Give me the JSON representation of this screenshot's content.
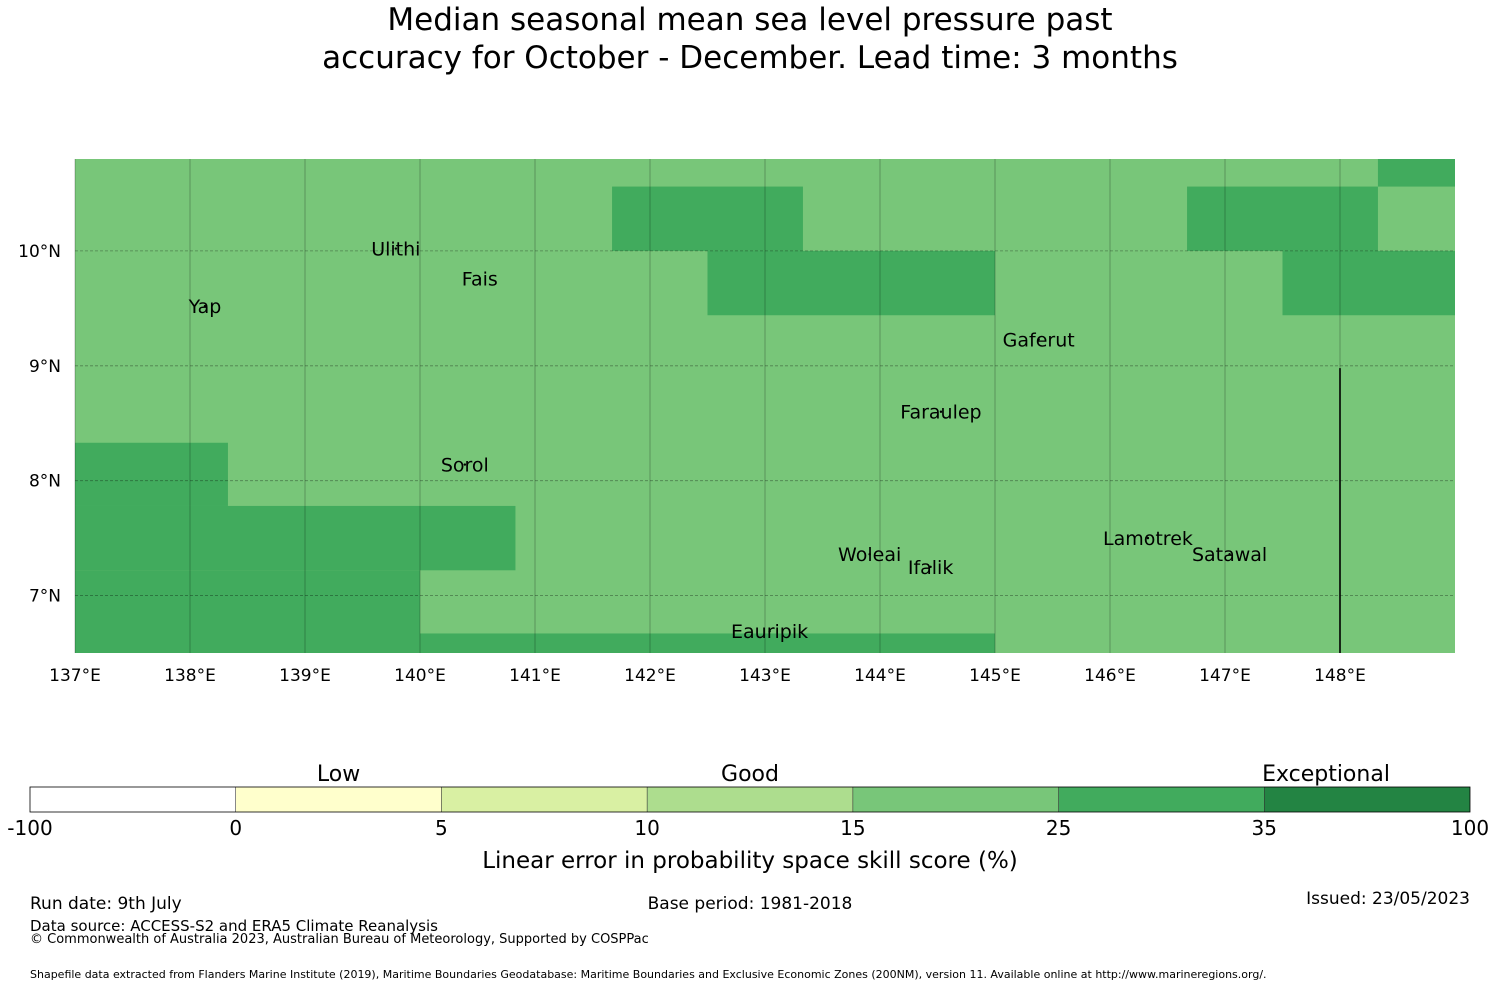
{
  "title": {
    "line1": "Median seasonal mean sea level pressure past",
    "line2": "accuracy for October - December. Lead time: 3 months"
  },
  "map": {
    "lon_range": [
      137.0,
      149.0
    ],
    "lat_range": [
      6.5,
      10.8
    ],
    "grid": true,
    "lon_ticks": [
      {
        "value": 137,
        "label": "137°E"
      },
      {
        "value": 138,
        "label": "138°E"
      },
      {
        "value": 139,
        "label": "139°E"
      },
      {
        "value": 140,
        "label": "140°E"
      },
      {
        "value": 141,
        "label": "141°E"
      },
      {
        "value": 142,
        "label": "142°E"
      },
      {
        "value": 143,
        "label": "143°E"
      },
      {
        "value": 144,
        "label": "144°E"
      },
      {
        "value": 145,
        "label": "145°E"
      },
      {
        "value": 146,
        "label": "146°E"
      },
      {
        "value": 147,
        "label": "147°E"
      },
      {
        "value": 148,
        "label": "148°E"
      }
    ],
    "lat_ticks": [
      {
        "value": 7,
        "label": "7°N"
      },
      {
        "value": 8,
        "label": "8°N"
      },
      {
        "value": 9,
        "label": "9°N"
      },
      {
        "value": 10,
        "label": "10°N"
      }
    ],
    "background_category": "15-25",
    "cells": [
      {
        "lon": [
          141.67,
          143.33
        ],
        "lat": [
          10.0,
          10.56
        ],
        "category": "25-35"
      },
      {
        "lon": [
          142.5,
          145.0
        ],
        "lat": [
          9.44,
          10.0
        ],
        "category": "25-35"
      },
      {
        "lon": [
          146.67,
          148.33
        ],
        "lat": [
          10.0,
          10.56
        ],
        "category": "25-35"
      },
      {
        "lon": [
          148.33,
          149.0
        ],
        "lat": [
          10.56,
          10.8
        ],
        "category": "25-35"
      },
      {
        "lon": [
          147.5,
          149.0
        ],
        "lat": [
          9.44,
          10.0
        ],
        "category": "25-35"
      },
      {
        "lon": [
          137.0,
          138.33
        ],
        "lat": [
          7.78,
          8.33
        ],
        "category": "25-35"
      },
      {
        "lon": [
          137.0,
          140.83
        ],
        "lat": [
          7.22,
          7.78
        ],
        "category": "25-35"
      },
      {
        "lon": [
          137.0,
          140.0
        ],
        "lat": [
          6.5,
          7.22
        ],
        "category": "25-35"
      },
      {
        "lon": [
          140.0,
          145.0
        ],
        "lat": [
          6.5,
          6.67
        ],
        "category": "25-35"
      }
    ],
    "boundary_line": {
      "lon": 148.0,
      "lat": [
        6.5,
        8.98
      ]
    },
    "places": [
      {
        "name": "Ulithi",
        "lon": 139.79,
        "lat": 10.02
      },
      {
        "name": "Fais",
        "lon": 140.52,
        "lat": 9.76
      },
      {
        "name": "Yap",
        "lon": 138.13,
        "lat": 9.52
      },
      {
        "name": "Gaferut",
        "lon": 145.38,
        "lat": 9.23
      },
      {
        "name": "Faraulep",
        "lon": 144.53,
        "lat": 8.6
      },
      {
        "name": "Sorol",
        "lon": 140.39,
        "lat": 8.14
      },
      {
        "name": "Woleai",
        "lon": 143.91,
        "lat": 7.36
      },
      {
        "name": "Ifalik",
        "lon": 144.44,
        "lat": 7.25
      },
      {
        "name": "Lamotrek",
        "lon": 146.33,
        "lat": 7.5
      },
      {
        "name": "Satawal",
        "lon": 147.04,
        "lat": 7.36
      },
      {
        "name": "Eauripik",
        "lon": 143.04,
        "lat": 6.69
      }
    ]
  },
  "legend": {
    "categories": [
      {
        "range": "-100-0",
        "color": "#ffffff"
      },
      {
        "range": "0-5",
        "color": "#ffffcc"
      },
      {
        "range": "5-10",
        "color": "#d9f0a3"
      },
      {
        "range": "10-15",
        "color": "#addd8e"
      },
      {
        "range": "15-25",
        "color": "#78c679"
      },
      {
        "range": "25-35",
        "color": "#41ab5d"
      },
      {
        "range": "35-100",
        "color": "#238443"
      }
    ],
    "tick_labels": [
      "-100",
      "0",
      "5",
      "10",
      "15",
      "25",
      "35",
      "100"
    ],
    "skill_words": [
      "Low",
      "Good",
      "Exceptional"
    ],
    "axis_label": "Linear error in probability space skill score (%)"
  },
  "footer": {
    "run_date": "Run date: 9th July",
    "base_period": "Base period: 1981-2018",
    "issued": "Issued: 23/05/2023",
    "data_source": "Data source: ACCESS-S2 and ERA5 Climate Reanalysis",
    "copyright": "© Commonwealth of Australia 2023, Australian Bureau of Meteorology, Supported by COSPPac",
    "shapefile": "Shapefile data extracted from Flanders Marine Institute (2019), Maritime Boundaries Geodatabase: Maritime Boundaries and Exclusive Economic Zones (200NM), version 11. Available online at http://www.marineregions.org/."
  }
}
